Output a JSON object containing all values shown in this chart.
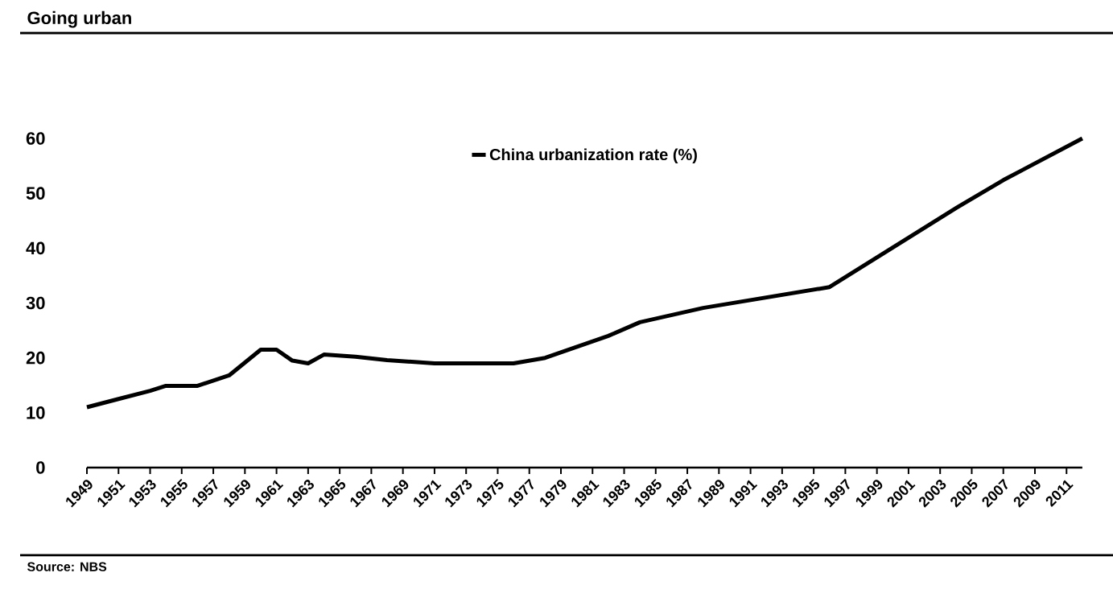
{
  "chart_data": {
    "type": "line",
    "title": "Going urban",
    "annotations": [
      "Source: NBS"
    ],
    "x": [
      1949,
      1951,
      1953,
      1954,
      1956,
      1958,
      1960,
      1961,
      1962,
      1963,
      1964,
      1966,
      1968,
      1971,
      1976,
      1978,
      1982,
      1984,
      1988,
      1996,
      2000,
      2004,
      2007,
      2012
    ],
    "series": [
      {
        "name": "China urbanization rate (%)",
        "color": "#000000",
        "values": [
          11.0,
          12.5,
          14.0,
          14.9,
          14.9,
          16.8,
          21.5,
          21.5,
          19.5,
          19.0,
          20.6,
          20.2,
          19.6,
          19.0,
          19.0,
          20.0,
          24.0,
          26.5,
          29.1,
          32.9,
          40.1,
          47.3,
          52.4,
          60.0
        ]
      }
    ],
    "xlim": [
      1949,
      2012
    ],
    "xticks": [
      1949,
      1951,
      1953,
      1955,
      1957,
      1959,
      1961,
      1963,
      1965,
      1967,
      1969,
      1971,
      1973,
      1975,
      1977,
      1979,
      1981,
      1983,
      1985,
      1987,
      1989,
      1991,
      1993,
      1995,
      1997,
      1999,
      2001,
      2003,
      2005,
      2007,
      2009,
      2011
    ],
    "ylim": [
      0,
      60
    ],
    "yticks": [
      0,
      10,
      20,
      30,
      40,
      50,
      60
    ],
    "legend": "top"
  }
}
